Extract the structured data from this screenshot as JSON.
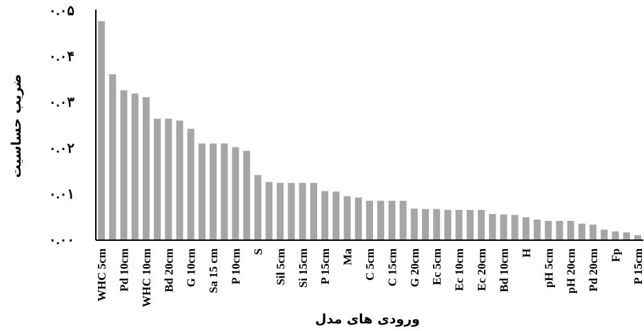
{
  "chart_data": {
    "type": "bar",
    "xlabel": "ورودی های مدل",
    "ylabel": "ضریب حساسیت",
    "ylim": [
      0,
      0.05
    ],
    "yticks": [
      {
        "value": 0.0,
        "label": "۰.۰۰"
      },
      {
        "value": 0.01,
        "label": "۰.۰۱"
      },
      {
        "value": 0.02,
        "label": "۰.۰۲"
      },
      {
        "value": 0.03,
        "label": "۰.۰۳"
      },
      {
        "value": 0.04,
        "label": "۰.۰۴"
      },
      {
        "value": 0.05,
        "label": "۰.۰۵"
      }
    ],
    "bar_color": "#a6a6a6",
    "grid": false,
    "categories": [
      "WHC 5cm",
      "",
      "Pd 10cm",
      "",
      "WHC 10cm",
      "",
      "Bd 20cm",
      "",
      "G 10cm",
      "",
      "Sa 15 cm",
      "",
      "P 10cm",
      "",
      "S",
      "",
      "Sil 5cm",
      "",
      "Si 15cm",
      "",
      "P 15cm",
      "",
      "Ma",
      "",
      "C 5cm",
      "",
      "C 15cm",
      "",
      "G 20cm",
      "",
      "Ec 5cm",
      "",
      "Ec 10cm",
      "",
      "Ec 20cm",
      "",
      "Bd 10cm",
      "",
      "H",
      "",
      "pH 5cm",
      "",
      "pH 20cm",
      "",
      "Pd 20cm",
      "",
      "Fp",
      "",
      "P 15cm"
    ],
    "values": [
      0.0478,
      0.0362,
      0.0327,
      0.032,
      0.0312,
      0.0265,
      0.0265,
      0.0261,
      0.0243,
      0.0211,
      0.0211,
      0.0211,
      0.0203,
      0.0195,
      0.0142,
      0.0127,
      0.0125,
      0.0125,
      0.0125,
      0.0125,
      0.0107,
      0.0106,
      0.0096,
      0.0093,
      0.0086,
      0.0086,
      0.0086,
      0.0086,
      0.0069,
      0.0068,
      0.0068,
      0.0066,
      0.0066,
      0.0066,
      0.0066,
      0.0057,
      0.0056,
      0.0055,
      0.005,
      0.0045,
      0.0042,
      0.0042,
      0.0042,
      0.0036,
      0.0034,
      0.0023,
      0.0019,
      0.0017,
      0.0011
    ]
  }
}
